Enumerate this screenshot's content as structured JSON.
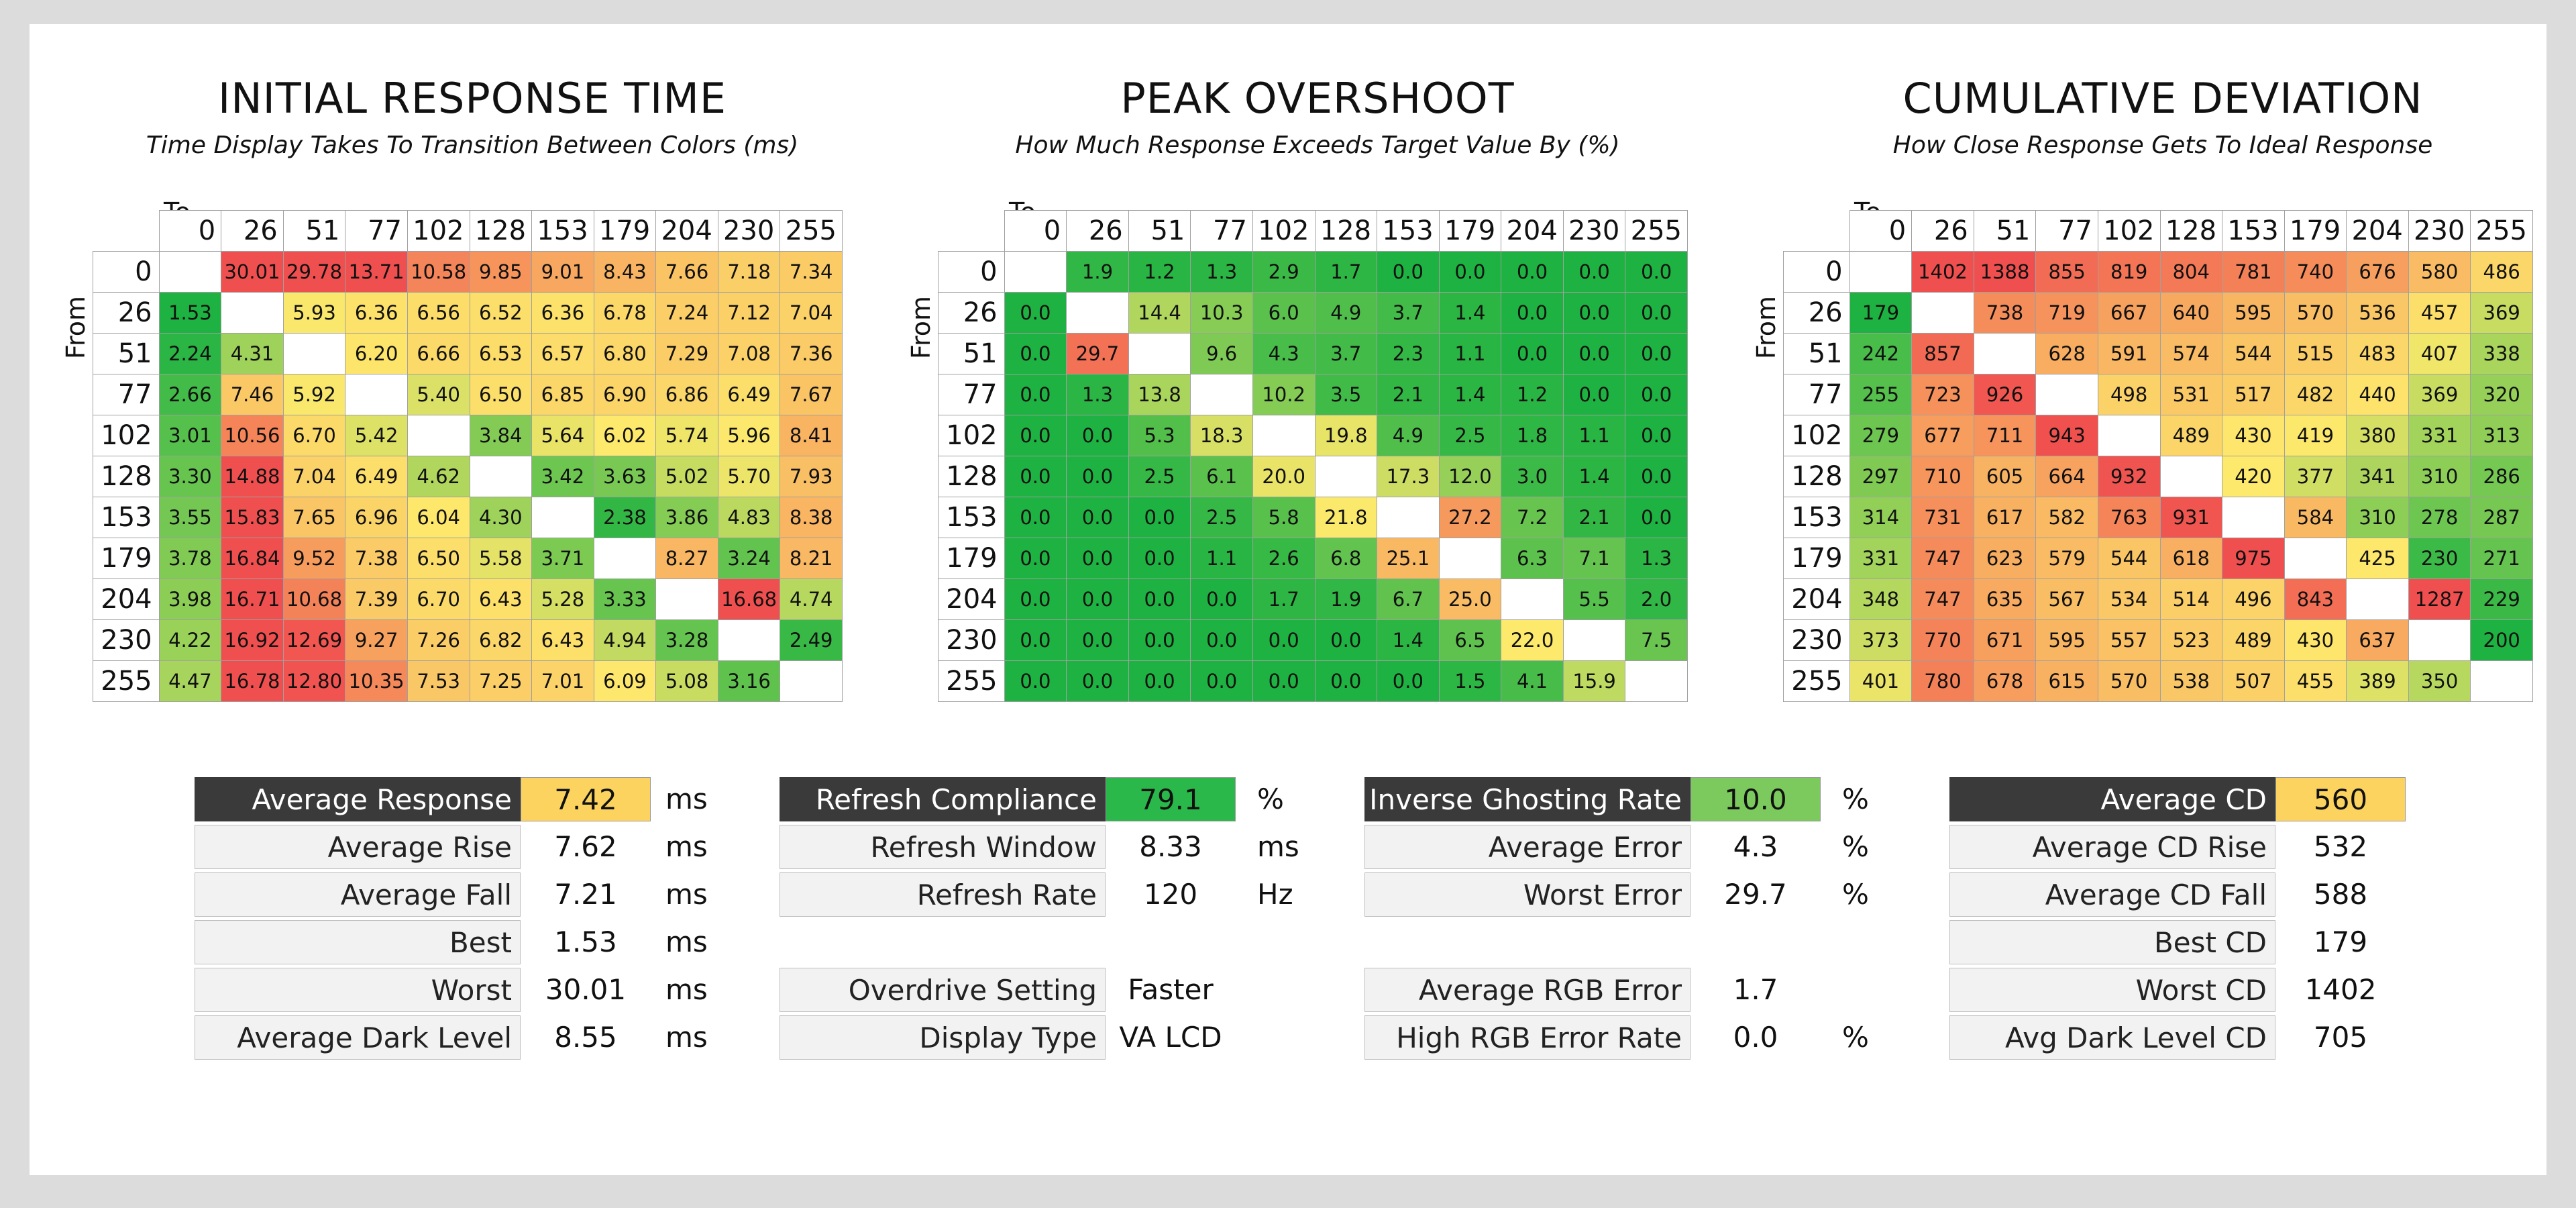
{
  "chart_data": [
    {
      "type": "heatmap",
      "title": "INITIAL RESPONSE TIME",
      "subtitle": "Time Display Takes To Transition Between Colors (ms)",
      "xlabel": "To",
      "ylabel": "From",
      "x": [
        "0",
        "26",
        "51",
        "77",
        "102",
        "128",
        "153",
        "179",
        "204",
        "230",
        "255"
      ],
      "y": [
        "0",
        "26",
        "51",
        "77",
        "102",
        "128",
        "153",
        "179",
        "204",
        "230",
        "255"
      ],
      "values": [
        [
          "",
          "30.01",
          "29.78",
          "13.71",
          "10.58",
          "9.85",
          "9.01",
          "8.43",
          "7.66",
          "7.18",
          "7.34"
        ],
        [
          "1.53",
          "",
          "5.93",
          "6.36",
          "6.56",
          "6.52",
          "6.36",
          "6.78",
          "7.24",
          "7.12",
          "7.04"
        ],
        [
          "2.24",
          "4.31",
          "",
          "6.20",
          "6.66",
          "6.53",
          "6.57",
          "6.80",
          "7.29",
          "7.08",
          "7.36"
        ],
        [
          "2.66",
          "7.46",
          "5.92",
          "",
          "5.40",
          "6.50",
          "6.85",
          "6.90",
          "6.86",
          "6.49",
          "7.67"
        ],
        [
          "3.01",
          "10.56",
          "6.70",
          "5.42",
          "",
          "3.84",
          "5.64",
          "6.02",
          "5.74",
          "5.96",
          "8.41"
        ],
        [
          "3.30",
          "14.88",
          "7.04",
          "6.49",
          "4.62",
          "",
          "3.42",
          "3.63",
          "5.02",
          "5.70",
          "7.93"
        ],
        [
          "3.55",
          "15.83",
          "7.65",
          "6.96",
          "6.04",
          "4.30",
          "",
          "2.38",
          "3.86",
          "4.83",
          "8.38"
        ],
        [
          "3.78",
          "16.84",
          "9.52",
          "7.38",
          "6.50",
          "5.58",
          "3.71",
          "",
          "8.27",
          "3.24",
          "8.21"
        ],
        [
          "3.98",
          "16.71",
          "10.68",
          "7.39",
          "6.70",
          "6.43",
          "5.28",
          "3.33",
          "",
          "16.68",
          "4.74"
        ],
        [
          "4.22",
          "16.92",
          "12.69",
          "9.27",
          "7.26",
          "6.82",
          "6.43",
          "4.94",
          "3.28",
          "",
          "2.49"
        ],
        [
          "4.47",
          "16.78",
          "12.80",
          "10.35",
          "7.53",
          "7.25",
          "7.01",
          "6.09",
          "5.08",
          "3.16",
          ""
        ]
      ],
      "color_scale": {
        "min": 2,
        "mid": 6,
        "max": 13,
        "low": "#1db241",
        "midc": "#fde96c",
        "high": "#f04f4f"
      }
    },
    {
      "type": "heatmap",
      "title": "PEAK OVERSHOOT",
      "subtitle": "How Much Response Exceeds Target Value By (%)",
      "xlabel": "To",
      "ylabel": "From",
      "x": [
        "0",
        "26",
        "51",
        "77",
        "102",
        "128",
        "153",
        "179",
        "204",
        "230",
        "255"
      ],
      "y": [
        "0",
        "26",
        "51",
        "77",
        "102",
        "128",
        "153",
        "179",
        "204",
        "230",
        "255"
      ],
      "values": [
        [
          "",
          "1.9",
          "1.2",
          "1.3",
          "2.9",
          "1.7",
          "0.0",
          "0.0",
          "0.0",
          "0.0",
          "0.0"
        ],
        [
          "0.0",
          "",
          "14.4",
          "10.3",
          "6.0",
          "4.9",
          "3.7",
          "1.4",
          "0.0",
          "0.0",
          "0.0"
        ],
        [
          "0.0",
          "29.7",
          "",
          "9.6",
          "4.3",
          "3.7",
          "2.3",
          "1.1",
          "0.0",
          "0.0",
          "0.0"
        ],
        [
          "0.0",
          "1.3",
          "13.8",
          "",
          "10.2",
          "3.5",
          "2.1",
          "1.4",
          "1.2",
          "0.0",
          "0.0"
        ],
        [
          "0.0",
          "0.0",
          "5.3",
          "18.3",
          "",
          "19.8",
          "4.9",
          "2.5",
          "1.8",
          "1.1",
          "0.0"
        ],
        [
          "0.0",
          "0.0",
          "2.5",
          "6.1",
          "20.0",
          "",
          "17.3",
          "12.0",
          "3.0",
          "1.4",
          "0.0"
        ],
        [
          "0.0",
          "0.0",
          "0.0",
          "2.5",
          "5.8",
          "21.8",
          "",
          "27.2",
          "7.2",
          "2.1",
          "0.0"
        ],
        [
          "0.0",
          "0.0",
          "0.0",
          "1.1",
          "2.6",
          "6.8",
          "25.1",
          "",
          "6.3",
          "7.1",
          "1.3"
        ],
        [
          "0.0",
          "0.0",
          "0.0",
          "0.0",
          "1.7",
          "1.9",
          "6.7",
          "25.0",
          "",
          "5.5",
          "2.0"
        ],
        [
          "0.0",
          "0.0",
          "0.0",
          "0.0",
          "0.0",
          "0.0",
          "1.4",
          "6.5",
          "22.0",
          "",
          "7.5"
        ],
        [
          "0.0",
          "0.0",
          "0.0",
          "0.0",
          "0.0",
          "0.0",
          "0.0",
          "1.5",
          "4.1",
          "15.9",
          ""
        ]
      ],
      "color_scale": {
        "min": 0,
        "mid": 22,
        "max": 32,
        "low": "#1db241",
        "midc": "#fde96c",
        "high": "#f04f4f"
      }
    },
    {
      "type": "heatmap",
      "title": "CUMULATIVE DEVIATION",
      "subtitle": "How Close Response Gets To Ideal Response",
      "xlabel": "To",
      "ylabel": "From",
      "x": [
        "0",
        "26",
        "51",
        "77",
        "102",
        "128",
        "153",
        "179",
        "204",
        "230",
        "255"
      ],
      "y": [
        "0",
        "26",
        "51",
        "77",
        "102",
        "128",
        "153",
        "179",
        "204",
        "230",
        "255"
      ],
      "values": [
        [
          "",
          "1402",
          "1388",
          "855",
          "819",
          "804",
          "781",
          "740",
          "676",
          "580",
          "486"
        ],
        [
          "179",
          "",
          "738",
          "719",
          "667",
          "640",
          "595",
          "570",
          "536",
          "457",
          "369"
        ],
        [
          "242",
          "857",
          "",
          "628",
          "591",
          "574",
          "544",
          "515",
          "483",
          "407",
          "338"
        ],
        [
          "255",
          "723",
          "926",
          "",
          "498",
          "531",
          "517",
          "482",
          "440",
          "369",
          "320"
        ],
        [
          "279",
          "677",
          "711",
          "943",
          "",
          "489",
          "430",
          "419",
          "380",
          "331",
          "313"
        ],
        [
          "297",
          "710",
          "605",
          "664",
          "932",
          "",
          "420",
          "377",
          "341",
          "310",
          "286"
        ],
        [
          "314",
          "731",
          "617",
          "582",
          "763",
          "931",
          "",
          "584",
          "310",
          "278",
          "287"
        ],
        [
          "331",
          "747",
          "623",
          "579",
          "544",
          "618",
          "975",
          "",
          "425",
          "230",
          "271"
        ],
        [
          "348",
          "747",
          "635",
          "567",
          "534",
          "514",
          "496",
          "843",
          "",
          "1287",
          "229"
        ],
        [
          "373",
          "770",
          "671",
          "595",
          "557",
          "523",
          "489",
          "430",
          "637",
          "",
          "200"
        ],
        [
          "401",
          "780",
          "678",
          "615",
          "570",
          "538",
          "507",
          "455",
          "389",
          "350",
          ""
        ]
      ],
      "color_scale": {
        "min": 200,
        "mid": 420,
        "max": 950,
        "low": "#1db241",
        "midc": "#fde96c",
        "high": "#f04f4f"
      }
    }
  ],
  "stats": {
    "response": [
      {
        "label": "Average Response",
        "value": "7.42",
        "unit": "ms",
        "highlight": "#fbd35e",
        "dark": true
      },
      {
        "label": "Average Rise",
        "value": "7.62",
        "unit": "ms"
      },
      {
        "label": "Average Fall",
        "value": "7.21",
        "unit": "ms"
      },
      {
        "label": "Best",
        "value": "1.53",
        "unit": "ms"
      },
      {
        "label": "Worst",
        "value": "30.01",
        "unit": "ms"
      },
      {
        "label": "Average Dark Level",
        "value": "8.55",
        "unit": "ms"
      }
    ],
    "refresh": [
      {
        "label": "Refresh Compliance",
        "value": "79.1",
        "unit": "%",
        "highlight": "#2ab84a",
        "dark": true
      },
      {
        "label": "Refresh Window",
        "value": "8.33",
        "unit": "ms"
      },
      {
        "label": "Refresh Rate",
        "value": "120",
        "unit": "Hz"
      },
      {
        "label": "Overdrive Setting",
        "value": "Faster",
        "unit": ""
      },
      {
        "label": "Display Type",
        "value": "VA LCD",
        "unit": ""
      }
    ],
    "error": [
      {
        "label": "Inverse Ghosting Rate",
        "value": "10.0",
        "unit": "%",
        "highlight": "#7cc95e",
        "dark": true
      },
      {
        "label": "Average Error",
        "value": "4.3",
        "unit": "%"
      },
      {
        "label": "Worst Error",
        "value": "29.7",
        "unit": "%"
      },
      {
        "label": "Average RGB Error",
        "value": "1.7",
        "unit": ""
      },
      {
        "label": "High RGB Error Rate",
        "value": "0.0",
        "unit": "%"
      }
    ],
    "cd": [
      {
        "label": "Average CD",
        "value": "560",
        "unit": "",
        "highlight": "#fbd35e",
        "dark": true
      },
      {
        "label": "Average CD Rise",
        "value": "532",
        "unit": ""
      },
      {
        "label": "Average CD Fall",
        "value": "588",
        "unit": ""
      },
      {
        "label": "Best CD",
        "value": "179",
        "unit": ""
      },
      {
        "label": "Worst CD",
        "value": "1402",
        "unit": ""
      },
      {
        "label": "Avg Dark Level CD",
        "value": "705",
        "unit": ""
      }
    ]
  }
}
